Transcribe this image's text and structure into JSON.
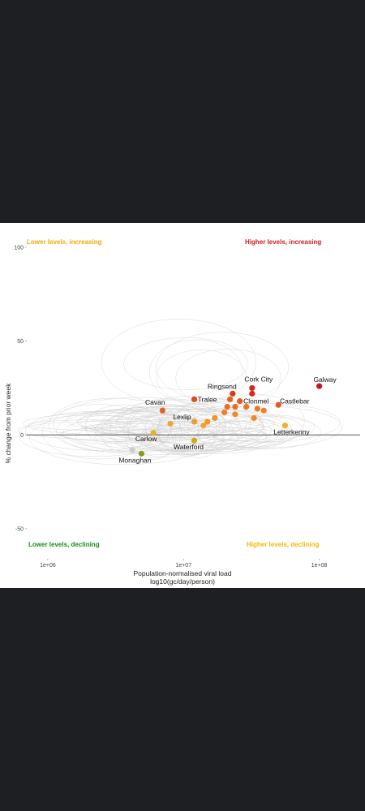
{
  "chart_data": {
    "type": "scatter",
    "xlabel": "Population-normalised viral load",
    "xlabel_sub": "log10(gc/day/person)",
    "ylabel": "% change from prior week",
    "x_scale": "log10",
    "xlim": [
      700000,
      200000000
    ],
    "ylim": [
      -60,
      100
    ],
    "x_ticks": [
      {
        "value": 1000000,
        "label": "1e+06"
      },
      {
        "value": 10000000,
        "label": "1e+07"
      },
      {
        "value": 100000000,
        "label": "1e+08"
      }
    ],
    "y_ticks": [
      {
        "value": 100,
        "label": "100"
      },
      {
        "value": 50,
        "label": "50"
      },
      {
        "value": 0,
        "label": "0"
      },
      {
        "value": -50,
        "label": "-50"
      }
    ],
    "reference_line_y": 0,
    "background_trails": "light grey looping trajectories",
    "quadrant_labels": {
      "top_left": {
        "text": "Lower levels, increasing",
        "color": "#f5a800"
      },
      "top_right": {
        "text": "Higher levels, increasing",
        "color": "#d7191c"
      },
      "bottom_left": {
        "text": "Lower levels, declining",
        "color": "#1a8a1a"
      },
      "bottom_right": {
        "text": "Higher levels, declining",
        "color": "#f5b800"
      }
    },
    "points": [
      {
        "label": "Galway",
        "x": 100000000,
        "y": 26,
        "color": "#c8141e"
      },
      {
        "label": "Cork City",
        "x": 32000000,
        "y": 25,
        "color": "#d42a1a"
      },
      {
        "label": "",
        "x": 32000000,
        "y": 22,
        "color": "#d42a1a"
      },
      {
        "label": "Ringsend",
        "x": 23000000,
        "y": 22,
        "color": "#d63a1c"
      },
      {
        "label": "Tralee",
        "x": 12000000,
        "y": 19,
        "color": "#e04a1e"
      },
      {
        "label": "Clonmel",
        "x": 26000000,
        "y": 18,
        "color": "#e35a1f"
      },
      {
        "label": "Castlebar",
        "x": 50000000,
        "y": 16,
        "color": "#e65a20"
      },
      {
        "label": "Cavan",
        "x": 7000000,
        "y": 13,
        "color": "#e8601f"
      },
      {
        "label": "",
        "x": 22000000,
        "y": 19,
        "color": "#e8601f"
      },
      {
        "label": "",
        "x": 21000000,
        "y": 15,
        "color": "#ea6d22"
      },
      {
        "label": "",
        "x": 24000000,
        "y": 15,
        "color": "#ea6d22"
      },
      {
        "label": "",
        "x": 29000000,
        "y": 15,
        "color": "#ec7424"
      },
      {
        "label": "",
        "x": 35000000,
        "y": 14,
        "color": "#ec7424"
      },
      {
        "label": "",
        "x": 39000000,
        "y": 13,
        "color": "#ee8026"
      },
      {
        "label": "",
        "x": 20000000,
        "y": 12,
        "color": "#ee8026"
      },
      {
        "label": "",
        "x": 24000000,
        "y": 11,
        "color": "#f08a28"
      },
      {
        "label": "",
        "x": 33000000,
        "y": 9,
        "color": "#f08a28"
      },
      {
        "label": "",
        "x": 17000000,
        "y": 9,
        "color": "#f2942a"
      },
      {
        "label": "",
        "x": 15000000,
        "y": 7,
        "color": "#f2942a"
      },
      {
        "label": "Lexlip",
        "x": 12000000,
        "y": 7,
        "color": "#f29a2c"
      },
      {
        "label": "",
        "x": 14000000,
        "y": 5,
        "color": "#f4a42e"
      },
      {
        "label": "",
        "x": 8000000,
        "y": 6,
        "color": "#f4a42e"
      },
      {
        "label": "Letterkenny",
        "x": 56000000,
        "y": 5,
        "color": "#f5b030"
      },
      {
        "label": "Carlow",
        "x": 6000000,
        "y": 1,
        "color": "#e6b020"
      },
      {
        "label": "Waterford",
        "x": 12000000,
        "y": -3,
        "color": "#d6a818"
      },
      {
        "label": "Monaghan",
        "x": 4900000,
        "y": -10,
        "color": "#8c9a1a"
      },
      {
        "label": "",
        "x": 4200000,
        "y": -8,
        "color": "#cccccc"
      }
    ]
  }
}
